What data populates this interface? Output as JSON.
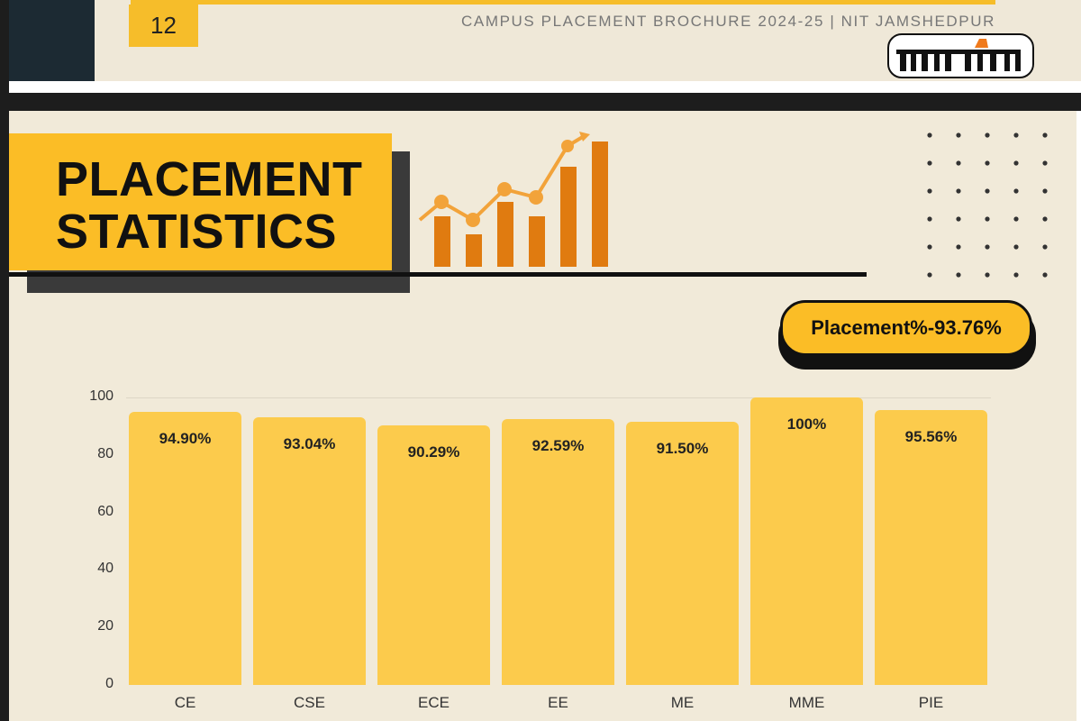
{
  "header": {
    "page_number": "12",
    "brochure_title": "CAMPUS PLACEMENT BROCHURE 2024-25 | NIT JAMSHEDPUR",
    "watermark_logo": "प्रभात खबर"
  },
  "section": {
    "title_line1": "PLACEMENT",
    "title_line2": "STATISTICS",
    "overall_badge": "Placement%-93.76%"
  },
  "colors": {
    "bar": "#fccb4c",
    "accent": "#fbbd26",
    "icon": "#e07b10"
  },
  "chart_data": {
    "type": "bar",
    "categories": [
      "CE",
      "CSE",
      "ECE",
      "EE",
      "ME",
      "MME",
      "PIE"
    ],
    "values": [
      94.9,
      93.04,
      90.29,
      92.59,
      91.5,
      100,
      95.56
    ],
    "data_labels": [
      "94.90%",
      "93.04%",
      "90.29%",
      "92.59%",
      "91.50%",
      "100%",
      "95.56%"
    ],
    "yticks": [
      "0",
      "20",
      "40",
      "60",
      "80",
      "100"
    ],
    "ylim": [
      0,
      100
    ],
    "xlabel": "",
    "ylabel": "",
    "grid": false
  }
}
